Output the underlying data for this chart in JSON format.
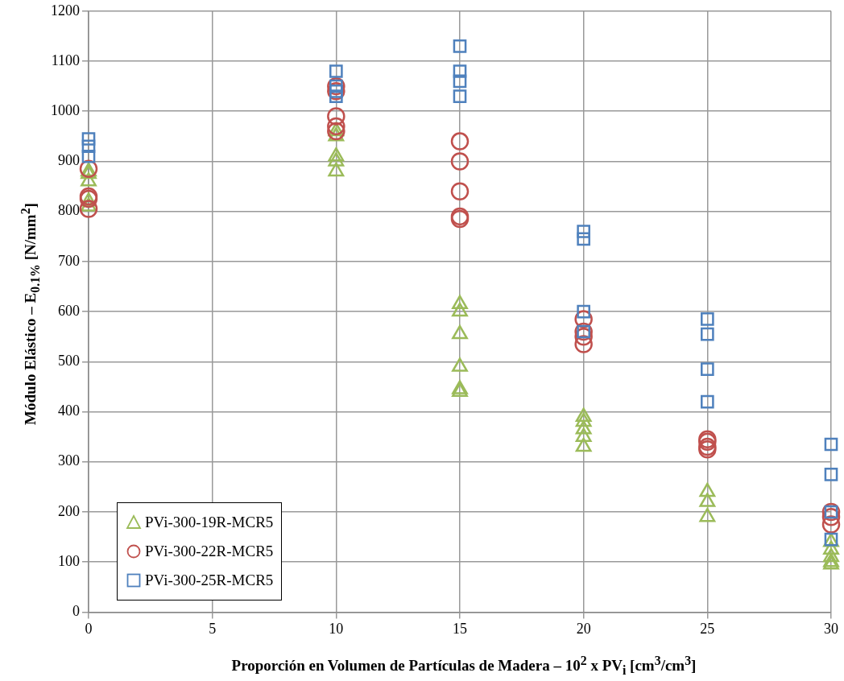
{
  "chart_data": {
    "type": "scatter",
    "xlabel": "Proporción  en Volumen  de Partículas de Madera  – 10$^{2}$ x PV$_{i}$ [cm$^{3}$/cm$^{3}$]",
    "ylabel": "Módulo  Elástico  – E$_{0.1%}$  [N/mm$^{2}$]",
    "xlim": [
      0,
      30
    ],
    "xticks": [
      0,
      5,
      10,
      15,
      20,
      25,
      30
    ],
    "ylim": [
      0,
      1200
    ],
    "yticks": [
      0,
      100,
      200,
      300,
      400,
      500,
      600,
      700,
      800,
      900,
      1000,
      1100,
      1200
    ],
    "grid": true,
    "legend": "bottom left",
    "series": [
      {
        "name": "PVi-300-19R-MCR5",
        "color": "#9bbb59",
        "marker": "triangle",
        "x": [
          0,
          0,
          0,
          0,
          0,
          10,
          10,
          10,
          10,
          10,
          15,
          15,
          15,
          15,
          15,
          15,
          20,
          20,
          20,
          20,
          20,
          25,
          25,
          25,
          30,
          30,
          30,
          30,
          30
        ],
        "values": [
          810,
          820,
          860,
          875,
          880,
          880,
          900,
          910,
          950,
          960,
          440,
          445,
          490,
          555,
          600,
          615,
          330,
          350,
          365,
          380,
          390,
          190,
          220,
          240,
          95,
          100,
          110,
          125,
          140
        ]
      },
      {
        "name": "PVi-300-22R-MCR5",
        "color": "#c0504d",
        "marker": "circle",
        "x": [
          0,
          0,
          0,
          0,
          10,
          10,
          10,
          10,
          10,
          15,
          15,
          15,
          15,
          15,
          20,
          20,
          20,
          20,
          25,
          25,
          25,
          25,
          30,
          30,
          30
        ],
        "values": [
          805,
          825,
          830,
          885,
          960,
          970,
          990,
          1040,
          1050,
          785,
          790,
          840,
          900,
          940,
          535,
          550,
          560,
          585,
          325,
          330,
          340,
          345,
          175,
          190,
          200
        ]
      },
      {
        "name": "PVi-300-25R-MCR5",
        "color": "#4f81bd",
        "marker": "square",
        "x": [
          0,
          0,
          0,
          10,
          10,
          10,
          10,
          15,
          15,
          15,
          15,
          20,
          20,
          20,
          20,
          25,
          25,
          25,
          25,
          30,
          30,
          30,
          30
        ],
        "values": [
          910,
          930,
          945,
          1030,
          1040,
          1050,
          1080,
          1030,
          1060,
          1080,
          1130,
          560,
          600,
          745,
          760,
          420,
          485,
          555,
          585,
          145,
          200,
          275,
          335
        ]
      }
    ]
  }
}
